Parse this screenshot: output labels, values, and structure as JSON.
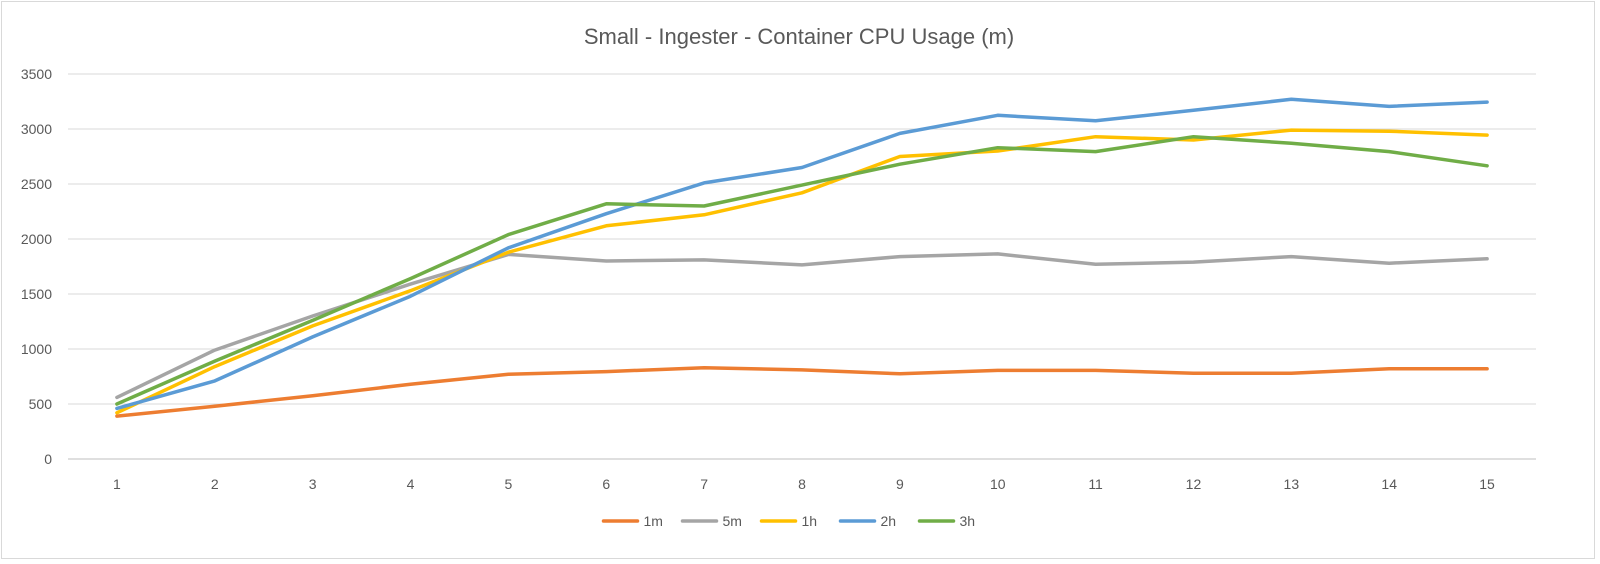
{
  "chart_data": {
    "type": "line",
    "title": "Small - Ingester - Container CPU Usage (m)",
    "xlabel": "",
    "ylabel": "",
    "ylim": [
      0,
      3500
    ],
    "y_ticks": [
      "0",
      "500",
      "1000",
      "1500",
      "2000",
      "2500",
      "3000",
      "3500"
    ],
    "categories": [
      "1",
      "2",
      "3",
      "4",
      "5",
      "6",
      "7",
      "8",
      "9",
      "10",
      "11",
      "12",
      "13",
      "14",
      "15"
    ],
    "grid": true,
    "legend_position": "bottom",
    "series": [
      {
        "name": "1m",
        "color": "#ED7D31",
        "values": [
          390,
          480,
          575,
          680,
          770,
          795,
          830,
          810,
          775,
          805,
          805,
          780,
          780,
          820,
          820
        ]
      },
      {
        "name": "5m",
        "color": "#A5A5A5",
        "values": [
          560,
          990,
          1300,
          1590,
          1860,
          1800,
          1810,
          1765,
          1840,
          1865,
          1770,
          1790,
          1840,
          1780,
          1820
        ]
      },
      {
        "name": "1h",
        "color": "#FFC000",
        "values": [
          420,
          840,
          1210,
          1530,
          1880,
          2120,
          2220,
          2420,
          2750,
          2800,
          2930,
          2900,
          2990,
          2980,
          2945
        ]
      },
      {
        "name": "2h",
        "color": "#5B9BD5",
        "values": [
          460,
          710,
          1110,
          1480,
          1920,
          2230,
          2510,
          2650,
          2960,
          3125,
          3075,
          3170,
          3270,
          3205,
          3245
        ]
      },
      {
        "name": "3h",
        "color": "#70AD47",
        "values": [
          500,
          890,
          1260,
          1640,
          2040,
          2320,
          2300,
          2490,
          2680,
          2830,
          2795,
          2930,
          2870,
          2795,
          2665
        ]
      }
    ]
  }
}
